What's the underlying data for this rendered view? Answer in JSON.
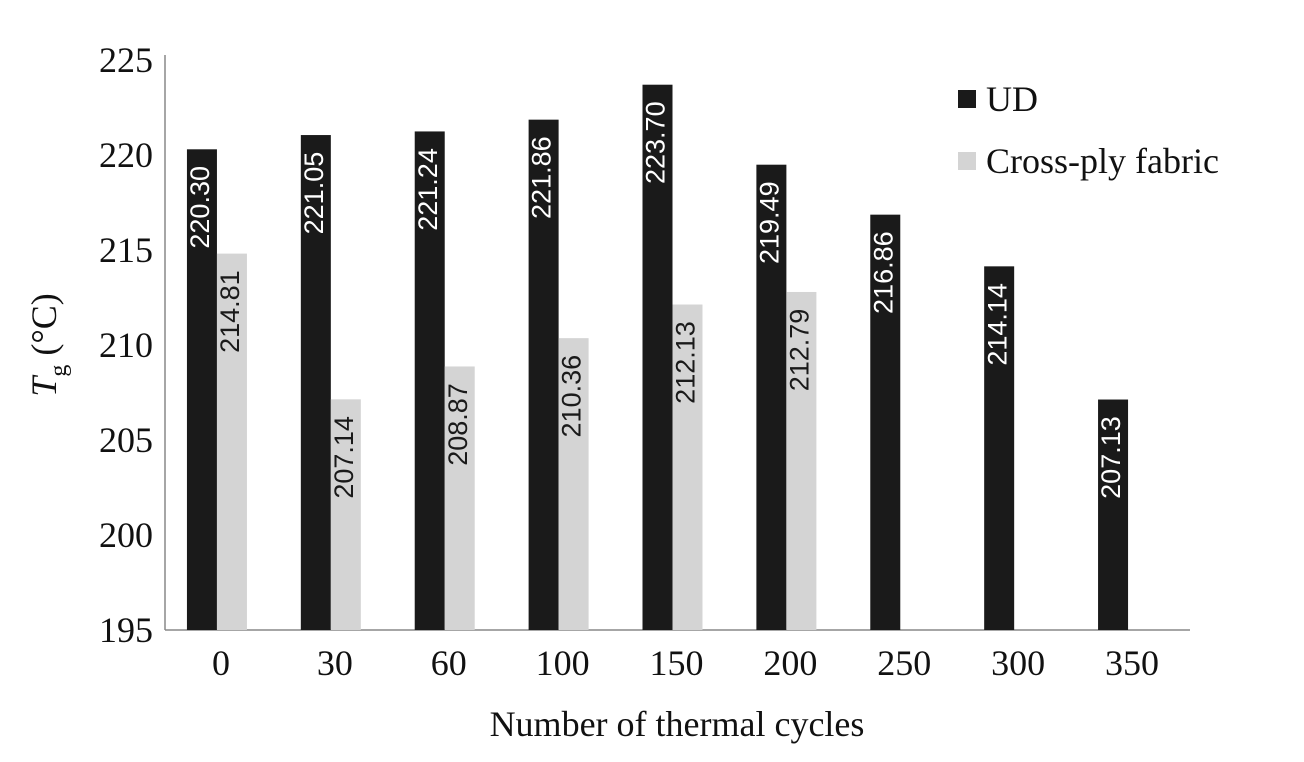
{
  "chart_data": {
    "type": "bar",
    "categories": [
      "0",
      "30",
      "60",
      "100",
      "150",
      "200",
      "250",
      "300",
      "350"
    ],
    "series": [
      {
        "name": "UD",
        "color": "#1a1a1a",
        "label_color": "#ffffff",
        "values": [
          220.3,
          221.05,
          221.24,
          221.86,
          223.7,
          219.49,
          216.86,
          214.14,
          207.13
        ],
        "labels": [
          "220.30",
          "221.05",
          "221.24",
          "221.86",
          "223.70",
          "219.49",
          "216.86",
          "214.14",
          "207.13"
        ]
      },
      {
        "name": "Cross-ply fabric",
        "color": "#d4d4d4",
        "label_color": "#1a1a1a",
        "values": [
          214.81,
          207.14,
          208.87,
          210.36,
          212.13,
          212.79,
          null,
          null,
          null
        ],
        "labels": [
          "214.81",
          "207.14",
          "208.87",
          "210.36",
          "212.13",
          "212.79",
          "",
          "",
          ""
        ]
      }
    ],
    "xlabel": "Number of thermal cycles",
    "ylabel_main": "T",
    "ylabel_sub": "g",
    "ylabel_unit": " (°C)",
    "ylim": [
      195,
      225
    ],
    "yticks": [
      "195",
      "200",
      "205",
      "210",
      "215",
      "220",
      "225"
    ],
    "legend_position": "top-right",
    "grid": false
  }
}
